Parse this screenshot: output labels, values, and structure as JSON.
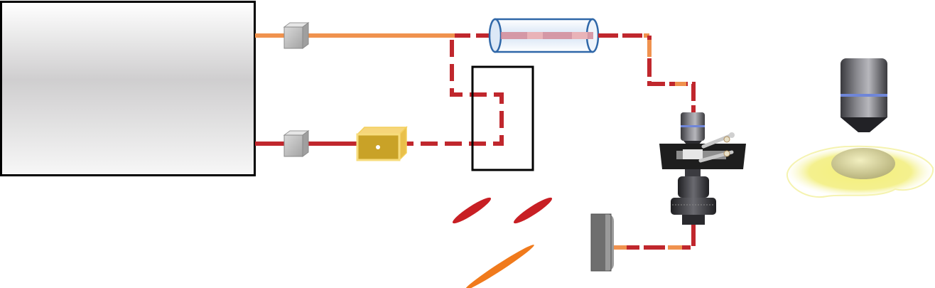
{
  "diagram": {
    "description_free": true,
    "colors": {
      "beam_orange": "#F0924E",
      "beam_red": "#C0272D",
      "laser_box_gradient_top": "#ffffff",
      "laser_box_gradient_mid": "#cfcecf",
      "crystal_gold": "#C9A227",
      "pulse_red": "#C81F24",
      "pulse_orange": "#F07A1C",
      "sample_yellow": "#F2EE7A",
      "objective_gray": "#5a5a5f",
      "objective_blue_band": "#6f86d8"
    },
    "icons": [
      "laser-source-box",
      "fiber-coupler-icon",
      "nonlinear-crystal-icon",
      "delay-stage-box",
      "fiber-tube-icon",
      "microscope-objective-icon",
      "sample-stage-icon",
      "condenser-icon",
      "detector-icon",
      "pulse-icon",
      "sample-droplet-icon"
    ]
  }
}
